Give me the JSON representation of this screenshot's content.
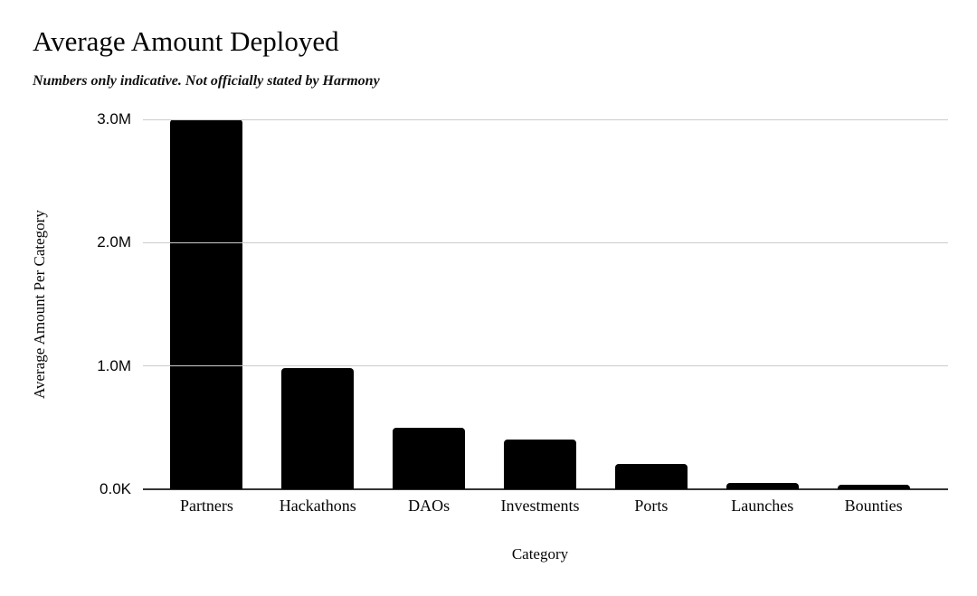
{
  "chart_data": {
    "type": "bar",
    "title": "Average Amount Deployed",
    "subtitle": "Numbers only indicative. Not officially stated by Harmony",
    "xlabel": "Category",
    "ylabel": "Average Amount Per Category",
    "categories": [
      "Partners",
      "Hackathons",
      "DAOs",
      "Investments",
      "Ports",
      "Launches",
      "Bounties"
    ],
    "values": [
      3000000,
      980000,
      500000,
      400000,
      205000,
      55000,
      40000
    ],
    "ylim": [
      0,
      3000000
    ],
    "yticks": [
      {
        "label": "0.0K",
        "value": 0
      },
      {
        "label": "1.0M",
        "value": 1000000
      },
      {
        "label": "2.0M",
        "value": 2000000
      },
      {
        "label": "3.0M",
        "value": 3000000
      }
    ],
    "grid": "horizontal",
    "legend": "none"
  },
  "colors": {
    "background": "#ffffff",
    "bar": "#000000",
    "gridline": "#cccccc",
    "axis_line": "#333333",
    "text": "#050505"
  }
}
